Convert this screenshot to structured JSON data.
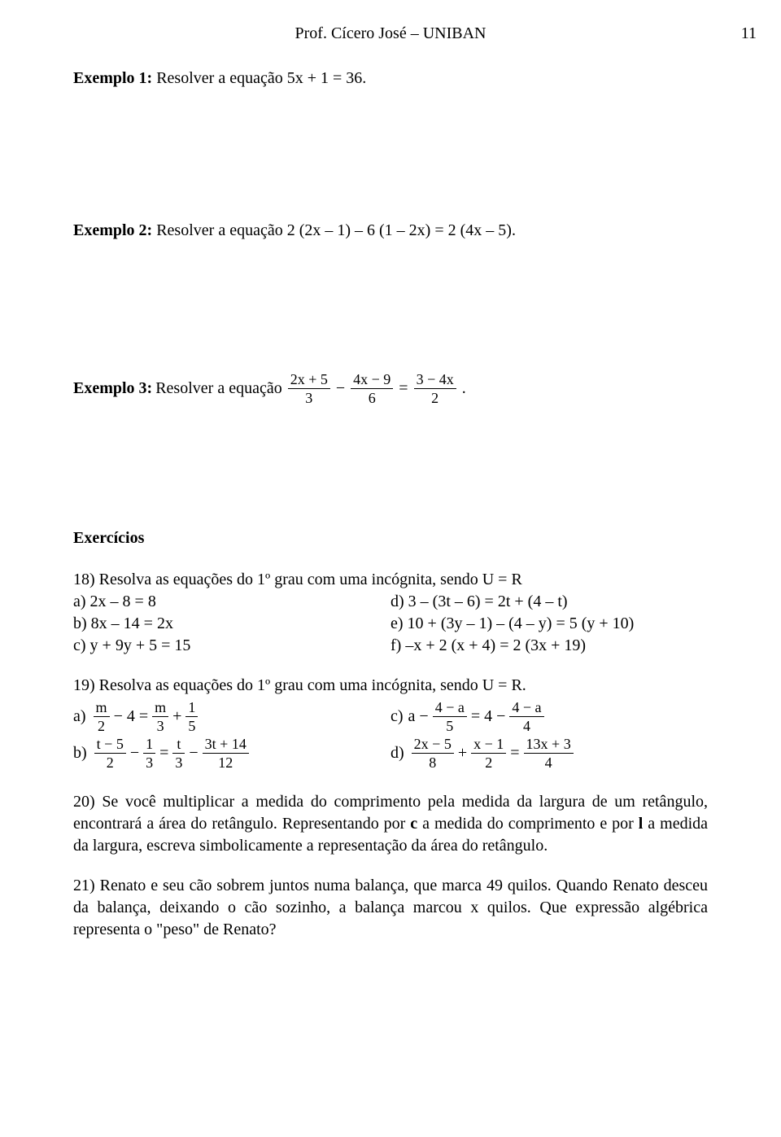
{
  "header": {
    "text": "Prof. Cícero José – UNIBAN",
    "pagenum": "11"
  },
  "ex1": {
    "label": "Exemplo 1:",
    "text": " Resolver a equação 5x + 1 = 36."
  },
  "ex2": {
    "label": "Exemplo 2:",
    "text": " Resolver a equação 2 (2x – 1) – 6 (1 – 2x) = 2 (4x – 5)."
  },
  "ex3": {
    "label": "Exemplo 3:",
    "lead": " Resolver a equação ",
    "f1num": "2x + 5",
    "f1den": "3",
    "minus": "−",
    "f2num": "4x − 9",
    "f2den": "6",
    "eq": " = ",
    "f3num": "3 − 4x",
    "f3den": "2",
    "dot": "."
  },
  "exercicios": "Exercícios",
  "q18": {
    "intro": "18) Resolva as equações do 1º grau com uma incógnita, sendo U = R",
    "a": "a) 2x – 8 = 8",
    "b": "b) 8x – 14 = 2x",
    "c": "c) y + 9y + 5 = 15",
    "d": "d) 3 – (3t – 6) = 2t + (4 – t)",
    "e": "e) 10 + (3y – 1) – (4 – y) = 5 (y + 10)",
    "f": "f) –x + 2 (x + 4) = 2 (3x + 19)"
  },
  "q19": {
    "intro": "19) Resolva as equações do 1º grau com uma incógnita, sendo U = R.",
    "a": {
      "label": "a)",
      "p1num": "m",
      "p1den": "2",
      "t1": " − 4 = ",
      "p2num": "m",
      "p2den": "3",
      "t2": " + ",
      "p3num": "1",
      "p3den": "5"
    },
    "b": {
      "label": "b)",
      "p1num": "t − 5",
      "p1den": "2",
      "t1": " − ",
      "p2num": "1",
      "p2den": "3",
      "t2": " = ",
      "p3num": "t",
      "p3den": "3",
      "t3": " − ",
      "p4num": "3t + 14",
      "p4den": "12"
    },
    "c": {
      "label": "c)",
      "lead": " a − ",
      "p1num": "4 − a",
      "p1den": "5",
      "t1": " = 4 − ",
      "p2num": "4 − a",
      "p2den": "4"
    },
    "d": {
      "label": "d)",
      "p1num": "2x − 5",
      "p1den": "8",
      "t1": " + ",
      "p2num": "x − 1",
      "p2den": "2",
      "t2": " = ",
      "p3num": "13x + 3",
      "p3den": "4"
    }
  },
  "q20": "20) Se você multiplicar a medida do comprimento pela medida da largura de um retângulo, encontrará a área do retângulo. Representando por c a medida do comprimento e por l a medida da largura, escreva simbolicamente a representação da área do retângulo.",
  "q21": "21) Renato e seu cão sobrem juntos numa balança, que marca 49 quilos. Quando Renato desceu da balança, deixando o cão sozinho, a balança marcou x quilos. Que expressão algébrica representa o \"peso\" de Renato?"
}
